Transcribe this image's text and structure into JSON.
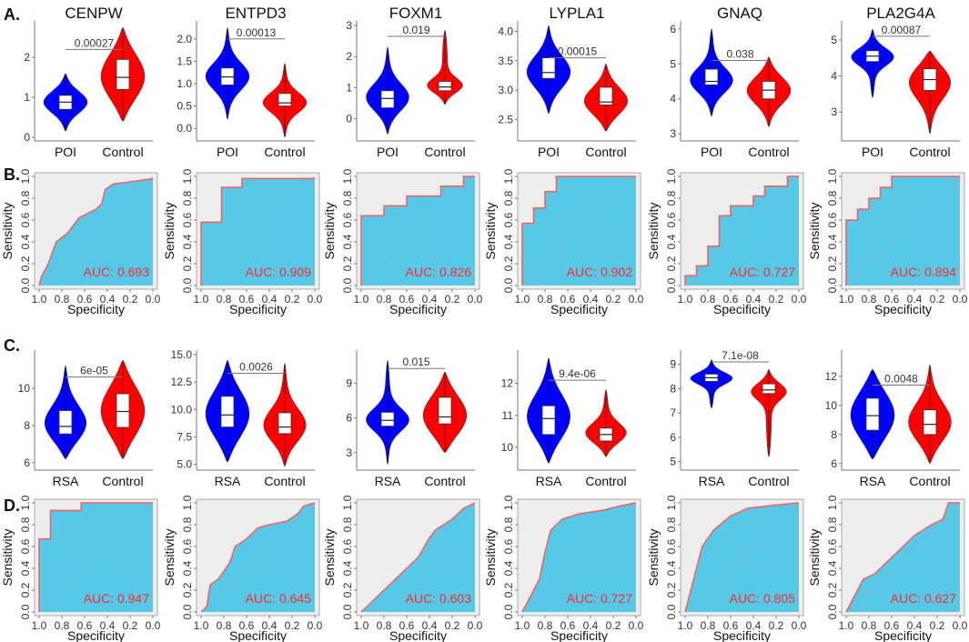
{
  "panel_labels": [
    "A.",
    "B.",
    "C.",
    "D."
  ],
  "colors": {
    "case": "#0000ff",
    "control": "#ff0000",
    "roc_fill": "#56c8e8",
    "roc_bg": "#eeeeee",
    "roc_line": "#ff5a5a",
    "auc_text": "#ff2a2a"
  },
  "chart_data": [
    {
      "type": "violin",
      "row": "A",
      "title": "CENPW",
      "groups": [
        "POI",
        "Control"
      ],
      "ylim": [
        0,
        2.8
      ],
      "yticks": [
        0,
        1,
        2
      ],
      "ytick_labels": [
        "0",
        "1",
        "2"
      ],
      "pvalue": "0.00027",
      "pvalue_y": 2.2,
      "stats": [
        {
          "min": 0.15,
          "q1": 0.7,
          "median": 0.88,
          "q3": 1.05,
          "max": 1.6
        },
        {
          "min": 0.4,
          "q1": 1.2,
          "median": 1.5,
          "q3": 1.95,
          "max": 2.75
        }
      ]
    },
    {
      "type": "violin",
      "row": "A",
      "title": "ENTPD3",
      "groups": [
        "POI",
        "Control"
      ],
      "ylim": [
        -0.2,
        2.3
      ],
      "yticks": [
        0,
        0.5,
        1,
        1.5,
        2
      ],
      "ytick_labels": [
        "0.0",
        "0.5",
        "1.0",
        "1.5",
        "2.0"
      ],
      "pvalue": "0.00013",
      "pvalue_y": 2.0,
      "stats": [
        {
          "min": 0.2,
          "q1": 0.97,
          "median": 1.15,
          "q3": 1.35,
          "max": 2.25
        },
        {
          "min": -0.2,
          "q1": 0.5,
          "median": 0.57,
          "q3": 0.78,
          "max": 1.45
        }
      ]
    },
    {
      "type": "violin",
      "row": "A",
      "title": "FOXM1",
      "groups": [
        "POI",
        "Control"
      ],
      "ylim": [
        -0.6,
        3
      ],
      "yticks": [
        0,
        1,
        2,
        3
      ],
      "ytick_labels": [
        "0",
        "1",
        "2",
        "3"
      ],
      "pvalue": "0.019",
      "pvalue_y": 2.65,
      "stats": [
        {
          "min": -0.5,
          "q1": 0.35,
          "median": 0.65,
          "q3": 0.9,
          "max": 2.3
        },
        {
          "min": 0.45,
          "q1": 0.9,
          "median": 1.02,
          "q3": 1.2,
          "max": 2.85
        }
      ]
    },
    {
      "type": "violin",
      "row": "A",
      "title": "LYPLA1",
      "groups": [
        "POI",
        "Control"
      ],
      "ylim": [
        2.2,
        4.1
      ],
      "yticks": [
        2.5,
        3,
        3.5,
        4
      ],
      "ytick_labels": [
        "2.5",
        "3.0",
        "3.5",
        "4.0"
      ],
      "pvalue": "0.00015",
      "pvalue_y": 3.55,
      "stats": [
        {
          "min": 2.6,
          "q1": 3.2,
          "median": 3.3,
          "q3": 3.55,
          "max": 4.1
        },
        {
          "min": 2.3,
          "q1": 2.75,
          "median": 2.8,
          "q3": 3.05,
          "max": 3.45
        }
      ]
    },
    {
      "type": "violin",
      "row": "A",
      "title": "GNAQ",
      "groups": [
        "POI",
        "Control"
      ],
      "ylim": [
        2.9,
        6.1
      ],
      "yticks": [
        3,
        4,
        5,
        6
      ],
      "ytick_labels": [
        "3",
        "4",
        "5",
        "6"
      ],
      "pvalue": "0.038",
      "pvalue_y": 5.1,
      "stats": [
        {
          "min": 3.5,
          "q1": 4.4,
          "median": 4.5,
          "q3": 4.85,
          "max": 6.0
        },
        {
          "min": 3.2,
          "q1": 4.0,
          "median": 4.25,
          "q3": 4.5,
          "max": 5.2
        }
      ]
    },
    {
      "type": "violin",
      "row": "A",
      "title": "PLA2G4A",
      "groups": [
        "POI",
        "Control"
      ],
      "ylim": [
        2.3,
        5.4
      ],
      "yticks": [
        3,
        4,
        5
      ],
      "ytick_labels": [
        "3",
        "4",
        "5"
      ],
      "pvalue": "0.00087",
      "pvalue_y": 5.1,
      "stats": [
        {
          "min": 3.4,
          "q1": 4.4,
          "median": 4.55,
          "q3": 4.7,
          "max": 5.3
        },
        {
          "min": 2.4,
          "q1": 3.6,
          "median": 3.9,
          "q3": 4.2,
          "max": 4.7
        }
      ]
    },
    {
      "type": "roc",
      "row": "B",
      "auc": "AUC: 0.693",
      "xlabel": "Specificity",
      "ylabel": "Sensitivity",
      "xtick_labels": [
        "1.0",
        "0.8",
        "0.6",
        "0.4",
        "0.2",
        "0.0"
      ],
      "ytick_labels": [
        "0.0",
        "0.2",
        "0.4",
        "0.6",
        "0.8",
        "1.0"
      ],
      "points": [
        [
          1,
          0
        ],
        [
          0.98,
          0.08
        ],
        [
          0.92,
          0.2
        ],
        [
          0.85,
          0.4
        ],
        [
          0.75,
          0.48
        ],
        [
          0.65,
          0.62
        ],
        [
          0.5,
          0.7
        ],
        [
          0.45,
          0.75
        ],
        [
          0.42,
          0.88
        ],
        [
          0.35,
          0.93
        ],
        [
          0.2,
          0.95
        ],
        [
          0,
          0.98
        ]
      ]
    },
    {
      "type": "roc",
      "row": "B",
      "auc": "AUC: 0.909",
      "xlabel": "Specificity",
      "ylabel": "Sensitivity",
      "xtick_labels": [
        "1.0",
        "0.8",
        "0.6",
        "0.4",
        "0.2",
        "0.0"
      ],
      "ytick_labels": [
        "0.0",
        "0.2",
        "0.4",
        "0.6",
        "0.8",
        "1.0"
      ],
      "points": [
        [
          1,
          0
        ],
        [
          1,
          0.58
        ],
        [
          0.82,
          0.58
        ],
        [
          0.82,
          0.9
        ],
        [
          0.64,
          0.9
        ],
        [
          0.64,
          0.98
        ],
        [
          0,
          0.98
        ]
      ]
    },
    {
      "type": "roc",
      "row": "B",
      "auc": "AUC: 0.826",
      "xlabel": "Specificity",
      "ylabel": "Sensitivity",
      "xtick_labels": [
        "1.0",
        "0.8",
        "0.6",
        "0.4",
        "0.2",
        "0.0"
      ],
      "ytick_labels": [
        "0.0",
        "0.2",
        "0.4",
        "0.6",
        "0.8",
        "1.0"
      ],
      "points": [
        [
          1,
          0
        ],
        [
          1,
          0.64
        ],
        [
          0.8,
          0.64
        ],
        [
          0.8,
          0.73
        ],
        [
          0.6,
          0.73
        ],
        [
          0.6,
          0.82
        ],
        [
          0.3,
          0.82
        ],
        [
          0.3,
          0.91
        ],
        [
          0.1,
          0.91
        ],
        [
          0.1,
          1
        ],
        [
          0,
          1
        ]
      ]
    },
    {
      "type": "roc",
      "row": "B",
      "auc": "AUC: 0.902",
      "xlabel": "Specificity",
      "ylabel": "Sensitivity",
      "xtick_labels": [
        "1.0",
        "0.8",
        "0.6",
        "0.4",
        "0.2",
        "0.0"
      ],
      "ytick_labels": [
        "0.0",
        "0.2",
        "0.4",
        "0.6",
        "0.8",
        "1.0"
      ],
      "points": [
        [
          1,
          0
        ],
        [
          1,
          0.57
        ],
        [
          0.9,
          0.57
        ],
        [
          0.9,
          0.71
        ],
        [
          0.8,
          0.71
        ],
        [
          0.8,
          0.86
        ],
        [
          0.7,
          0.86
        ],
        [
          0.7,
          1
        ],
        [
          0,
          1
        ]
      ]
    },
    {
      "type": "roc",
      "row": "B",
      "auc": "AUC: 0.727",
      "xlabel": "Specificity",
      "ylabel": "Sensitivity",
      "xtick_labels": [
        "1.0",
        "0.8",
        "0.6",
        "0.4",
        "0.2",
        "0.0"
      ],
      "ytick_labels": [
        "0.0",
        "0.2",
        "0.4",
        "0.6",
        "0.8",
        "1.0"
      ],
      "points": [
        [
          1,
          0
        ],
        [
          1,
          0.09
        ],
        [
          0.9,
          0.09
        ],
        [
          0.9,
          0.18
        ],
        [
          0.8,
          0.18
        ],
        [
          0.8,
          0.36
        ],
        [
          0.7,
          0.36
        ],
        [
          0.7,
          0.64
        ],
        [
          0.6,
          0.64
        ],
        [
          0.6,
          0.73
        ],
        [
          0.4,
          0.73
        ],
        [
          0.4,
          0.82
        ],
        [
          0.3,
          0.82
        ],
        [
          0.3,
          0.91
        ],
        [
          0.1,
          0.91
        ],
        [
          0.1,
          1
        ],
        [
          0,
          1
        ]
      ]
    },
    {
      "type": "roc",
      "row": "B",
      "auc": "AUC: 0.894",
      "xlabel": "Specificity",
      "ylabel": "Sensitivity",
      "xtick_labels": [
        "1.0",
        "0.8",
        "0.6",
        "0.4",
        "0.2",
        "0.0"
      ],
      "ytick_labels": [
        "0.0",
        "0.2",
        "0.4",
        "0.6",
        "0.8",
        "1.0"
      ],
      "points": [
        [
          1,
          0
        ],
        [
          1,
          0.6
        ],
        [
          0.9,
          0.6
        ],
        [
          0.9,
          0.7
        ],
        [
          0.8,
          0.7
        ],
        [
          0.8,
          0.8
        ],
        [
          0.7,
          0.8
        ],
        [
          0.7,
          0.9
        ],
        [
          0.6,
          0.9
        ],
        [
          0.6,
          1
        ],
        [
          0,
          1
        ]
      ]
    },
    {
      "type": "violin",
      "row": "C",
      "title": "",
      "groups": [
        "RSA",
        "Control"
      ],
      "ylim": [
        5.8,
        11.8
      ],
      "yticks": [
        6,
        8,
        10
      ],
      "ytick_labels": [
        "6",
        "8",
        "10"
      ],
      "pvalue": "6e-05",
      "pvalue_y": 10.6,
      "stats": [
        {
          "min": 6.2,
          "q1": 7.55,
          "median": 7.95,
          "q3": 8.8,
          "max": 11.2
        },
        {
          "min": 6.2,
          "q1": 7.9,
          "median": 8.75,
          "q3": 9.7,
          "max": 11.5
        }
      ]
    },
    {
      "type": "violin",
      "row": "C",
      "title": "",
      "groups": [
        "RSA",
        "Control"
      ],
      "ylim": [
        4.8,
        15
      ],
      "yticks": [
        5,
        7.5,
        10,
        12.5,
        15
      ],
      "ytick_labels": [
        "5.0",
        "7.5",
        "10.0",
        "12.5",
        "15.0"
      ],
      "pvalue": "0.0026",
      "pvalue_y": 13.3,
      "stats": [
        {
          "min": 5.2,
          "q1": 8.4,
          "median": 9.5,
          "q3": 11.2,
          "max": 14.5
        },
        {
          "min": 4.8,
          "q1": 7.8,
          "median": 8.4,
          "q3": 9.7,
          "max": 14.2
        }
      ]
    },
    {
      "type": "violin",
      "row": "C",
      "title": "",
      "groups": [
        "RSA",
        "Control"
      ],
      "ylim": [
        1.8,
        11.5
      ],
      "yticks": [
        3,
        6,
        9
      ],
      "ytick_labels": [
        "3",
        "6",
        "9"
      ],
      "pvalue": "0.015",
      "pvalue_y": 10.3,
      "stats": [
        {
          "min": 2.0,
          "q1": 5.3,
          "median": 5.8,
          "q3": 6.5,
          "max": 11.0
        },
        {
          "min": 3.0,
          "q1": 5.5,
          "median": 6.1,
          "q3": 7.8,
          "max": 10.0
        }
      ]
    },
    {
      "type": "violin",
      "row": "C",
      "title": "",
      "groups": [
        "RSA",
        "Control"
      ],
      "ylim": [
        9.4,
        12.9
      ],
      "yticks": [
        10,
        11,
        12
      ],
      "ytick_labels": [
        "10",
        "11",
        "12"
      ],
      "pvalue": "9.4e-06",
      "pvalue_y": 12.1,
      "stats": [
        {
          "min": 9.5,
          "q1": 10.4,
          "median": 10.9,
          "q3": 11.3,
          "max": 12.8
        },
        {
          "min": 9.7,
          "q1": 10.2,
          "median": 10.4,
          "q3": 10.6,
          "max": 11.8
        }
      ]
    },
    {
      "type": "violin",
      "row": "C",
      "title": "",
      "groups": [
        "RSA",
        "Control"
      ],
      "ylim": [
        4.8,
        9.4
      ],
      "yticks": [
        5,
        6,
        7,
        8,
        9
      ],
      "ytick_labels": [
        "5",
        "6",
        "7",
        "8",
        "9"
      ],
      "pvalue": "7.1e-08",
      "pvalue_y": 9.1,
      "stats": [
        {
          "min": 7.2,
          "q1": 8.3,
          "median": 8.45,
          "q3": 8.6,
          "max": 9.2
        },
        {
          "min": 5.2,
          "q1": 7.8,
          "median": 7.95,
          "q3": 8.2,
          "max": 8.8
        }
      ]
    },
    {
      "type": "violin",
      "row": "C",
      "title": "",
      "groups": [
        "RSA",
        "Control"
      ],
      "ylim": [
        5.8,
        13.5
      ],
      "yticks": [
        6,
        8,
        10,
        12
      ],
      "ytick_labels": [
        "6",
        "8",
        "10",
        "12"
      ],
      "pvalue": "0.0048",
      "pvalue_y": 11.4,
      "stats": [
        {
          "min": 6.3,
          "q1": 8.3,
          "median": 9.3,
          "q3": 10.5,
          "max": 12.5
        },
        {
          "min": 6.0,
          "q1": 8.0,
          "median": 8.7,
          "q3": 9.7,
          "max": 12.8
        }
      ]
    },
    {
      "type": "roc",
      "row": "D",
      "auc": "AUC: 0.947",
      "xlabel": "Specificity",
      "ylabel": "Sensitivity",
      "xtick_labels": [
        "1.0",
        "0.8",
        "0.6",
        "0.4",
        "0.2",
        "0.0"
      ],
      "ytick_labels": [
        "0.0",
        "0.2",
        "0.4",
        "0.6",
        "0.8",
        "1.0"
      ],
      "points": [
        [
          1,
          0
        ],
        [
          1,
          0.67
        ],
        [
          0.9,
          0.67
        ],
        [
          0.9,
          0.93
        ],
        [
          0.63,
          0.93
        ],
        [
          0.63,
          1
        ],
        [
          0,
          1
        ]
      ]
    },
    {
      "type": "roc",
      "row": "D",
      "auc": "AUC: 0.645",
      "xlabel": "Specificity",
      "ylabel": "Sensitivity",
      "xtick_labels": [
        "1.0",
        "0.8",
        "0.6",
        "0.4",
        "0.2",
        "0.0"
      ],
      "ytick_labels": [
        "0.0",
        "0.2",
        "0.4",
        "0.6",
        "0.8",
        "1.0"
      ],
      "points": [
        [
          1,
          0
        ],
        [
          0.95,
          0.05
        ],
        [
          0.92,
          0.25
        ],
        [
          0.85,
          0.3
        ],
        [
          0.75,
          0.45
        ],
        [
          0.7,
          0.6
        ],
        [
          0.6,
          0.67
        ],
        [
          0.5,
          0.77
        ],
        [
          0.4,
          0.8
        ],
        [
          0.25,
          0.83
        ],
        [
          0.15,
          0.9
        ],
        [
          0.1,
          0.97
        ],
        [
          0,
          1
        ]
      ]
    },
    {
      "type": "roc",
      "row": "D",
      "auc": "AUC: 0.603",
      "xlabel": "Specificity",
      "ylabel": "Sensitivity",
      "xtick_labels": [
        "1.0",
        "0.8",
        "0.6",
        "0.4",
        "0.2",
        "0.0"
      ],
      "ytick_labels": [
        "0.0",
        "0.2",
        "0.4",
        "0.6",
        "0.8",
        "1.0"
      ],
      "points": [
        [
          1,
          0
        ],
        [
          0.95,
          0.05
        ],
        [
          0.85,
          0.15
        ],
        [
          0.7,
          0.3
        ],
        [
          0.6,
          0.4
        ],
        [
          0.5,
          0.5
        ],
        [
          0.4,
          0.68
        ],
        [
          0.35,
          0.75
        ],
        [
          0.2,
          0.85
        ],
        [
          0.1,
          0.95
        ],
        [
          0,
          1
        ]
      ]
    },
    {
      "type": "roc",
      "row": "D",
      "auc": "AUC: 0.727",
      "xlabel": "Specificity",
      "ylabel": "Sensitivity",
      "xtick_labels": [
        "1.0",
        "0.8",
        "0.6",
        "0.4",
        "0.2",
        "0.0"
      ],
      "ytick_labels": [
        "0.0",
        "0.2",
        "0.4",
        "0.6",
        "0.8",
        "1.0"
      ],
      "points": [
        [
          1,
          0
        ],
        [
          0.95,
          0.1
        ],
        [
          0.85,
          0.3
        ],
        [
          0.8,
          0.55
        ],
        [
          0.75,
          0.75
        ],
        [
          0.65,
          0.85
        ],
        [
          0.5,
          0.9
        ],
        [
          0.3,
          0.93
        ],
        [
          0.15,
          0.97
        ],
        [
          0,
          1
        ]
      ]
    },
    {
      "type": "roc",
      "row": "D",
      "auc": "AUC: 0.805",
      "xlabel": "Specificity",
      "ylabel": "Sensitivity",
      "xtick_labels": [
        "1.0",
        "0.8",
        "0.6",
        "0.4",
        "0.2",
        "0.0"
      ],
      "ytick_labels": [
        "0.0",
        "0.2",
        "0.4",
        "0.6",
        "0.8",
        "1.0"
      ],
      "points": [
        [
          1,
          0
        ],
        [
          0.95,
          0.2
        ],
        [
          0.9,
          0.4
        ],
        [
          0.85,
          0.6
        ],
        [
          0.75,
          0.75
        ],
        [
          0.6,
          0.88
        ],
        [
          0.45,
          0.95
        ],
        [
          0.2,
          0.98
        ],
        [
          0,
          1
        ]
      ]
    },
    {
      "type": "roc",
      "row": "D",
      "auc": "AUC: 0.627",
      "xlabel": "Specificity",
      "ylabel": "Sensitivity",
      "xtick_labels": [
        "1.0",
        "0.8",
        "0.6",
        "0.4",
        "0.2",
        "0.0"
      ],
      "ytick_labels": [
        "0.0",
        "0.2",
        "0.4",
        "0.6",
        "0.8",
        "1.0"
      ],
      "points": [
        [
          1,
          0
        ],
        [
          0.95,
          0.1
        ],
        [
          0.85,
          0.3
        ],
        [
          0.75,
          0.35
        ],
        [
          0.6,
          0.5
        ],
        [
          0.5,
          0.6
        ],
        [
          0.4,
          0.7
        ],
        [
          0.25,
          0.8
        ],
        [
          0.15,
          0.85
        ],
        [
          0.1,
          1
        ],
        [
          0,
          1
        ]
      ]
    }
  ]
}
